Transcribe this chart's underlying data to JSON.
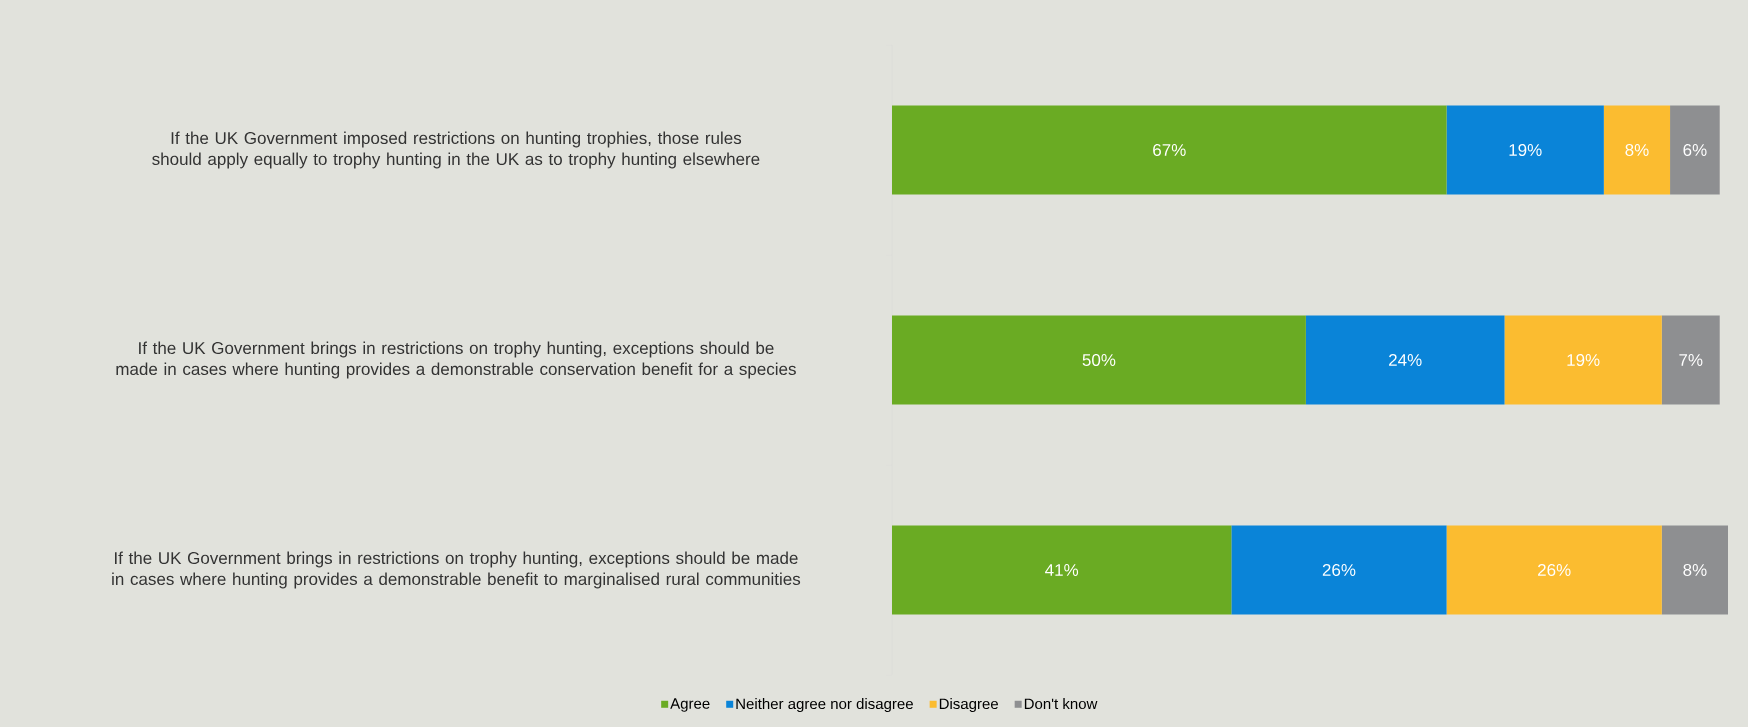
{
  "chart_data": {
    "type": "bar",
    "orientation": "horizontal",
    "stacked": true,
    "legend": "bottom",
    "categories": [
      "If the UK Government imposed restrictions on hunting trophies, those rules should apply equally to trophy hunting in the UK as to trophy hunting elsewhere",
      "If the UK Government brings in restrictions on trophy hunting, exceptions should be made in cases where hunting provides a demonstrable conservation benefit for a species",
      "If the UK Government brings in restrictions on trophy hunting, exceptions should be made in cases where hunting provides a demonstrable benefit to marginalised rural communities"
    ],
    "series": [
      {
        "name": "Agree",
        "color": "#6aab23",
        "values": [
          67,
          50,
          41
        ],
        "value_labels": [
          "67%",
          "50%",
          "41%"
        ]
      },
      {
        "name": "Neither agree nor disagree",
        "color": "#0a84d8",
        "values": [
          19,
          24,
          26
        ],
        "value_labels": [
          "19%",
          "24%",
          "26%"
        ]
      },
      {
        "name": "Disagree",
        "color": "#fbbc30",
        "values": [
          8,
          19,
          26
        ],
        "value_labels": [
          "8%",
          "19%",
          "26%"
        ]
      },
      {
        "name": "Don't know",
        "color": "#8e8f91",
        "values": [
          6,
          7,
          8
        ],
        "value_labels": [
          "6%",
          "7%",
          "8%"
        ]
      }
    ]
  }
}
